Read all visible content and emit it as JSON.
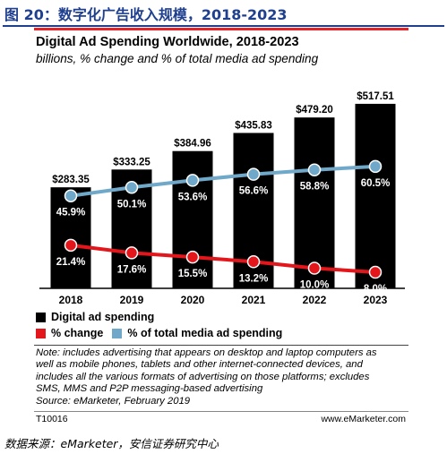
{
  "figure_caption": "图 20：数字化广告收入规模，2018-2023",
  "source_line": "数据来源：eMarketer，安信证券研究中心",
  "chart_data": {
    "type": "bar",
    "title": "Digital Ad Spending Worldwide, 2018-2023",
    "subtitle": "billions, % change and % of total media ad spending",
    "categories": [
      "2018",
      "2019",
      "2020",
      "2021",
      "2022",
      "2023"
    ],
    "series": [
      {
        "name": "Digital ad spending",
        "type": "bar",
        "color": "#000000",
        "values": [
          283.35,
          333.25,
          384.96,
          435.83,
          479.2,
          517.51
        ],
        "labels": [
          "$283.35",
          "$333.25",
          "$384.96",
          "$435.83",
          "$479.20",
          "$517.51"
        ]
      },
      {
        "name": "% change",
        "type": "line",
        "color": "#e3161b",
        "values": [
          21.4,
          17.6,
          15.5,
          13.2,
          10.0,
          8.0
        ],
        "labels": [
          "21.4%",
          "17.6%",
          "15.5%",
          "13.2%",
          "10.0%",
          "8.0%"
        ]
      },
      {
        "name": "% of total media ad spending",
        "type": "line",
        "color": "#6fa8c8",
        "values": [
          45.9,
          50.1,
          53.6,
          56.6,
          58.8,
          60.5
        ],
        "labels": [
          "45.9%",
          "50.1%",
          "53.6%",
          "56.6%",
          "58.8%",
          "60.5%"
        ]
      }
    ],
    "bar_ylim": [
      0,
      550
    ],
    "percent_ylim": [
      0,
      100
    ],
    "legend_position": "bottom",
    "grid": false
  },
  "note": [
    "Note: includes advertising that appears on desktop and laptop computers as",
    "well as mobile phones, tablets and other internet-connected devices, and",
    "includes all the various formats of advertising on those platforms; excludes",
    "SMS, MMS and P2P messaging-based advertising",
    "Source: eMarketer, February 2019"
  ],
  "footer": {
    "code": "T10016",
    "site": "www.eMarketer.com"
  }
}
